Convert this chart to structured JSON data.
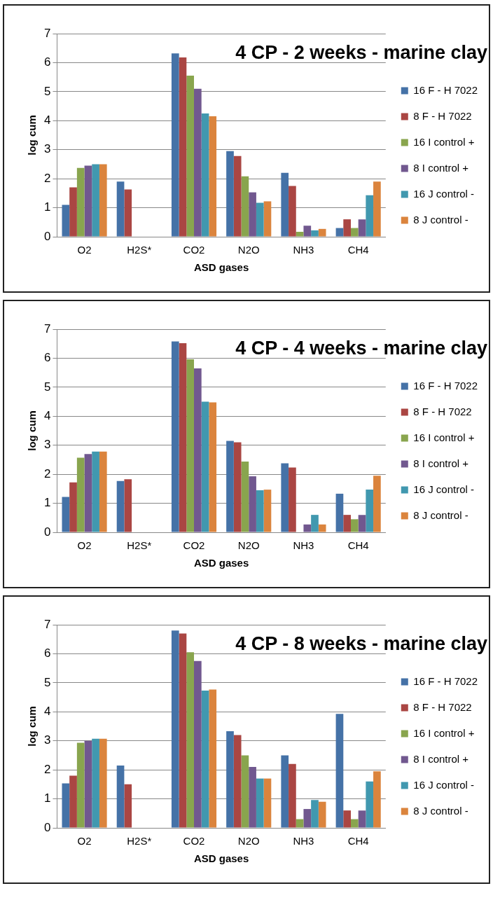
{
  "chart_data": [
    {
      "type": "bar",
      "title": "4 CP - 2 weeks - marine clay",
      "xlabel": "ASD gases",
      "ylabel": "log cum",
      "categories": [
        "O2",
        "H2S*",
        "CO2",
        "N2O",
        "NH3",
        "CH4"
      ],
      "ylim": [
        0,
        7
      ],
      "yticks": [
        0,
        1,
        2,
        3,
        4,
        5,
        6,
        7
      ],
      "grid": "y",
      "legend": "right",
      "series": [
        {
          "name": "16 F - H 7022",
          "color": "#4572a7",
          "values": [
            1.1,
            1.9,
            6.32,
            2.95,
            2.2,
            0.3
          ]
        },
        {
          "name": "8 F - H 7022",
          "color": "#aa4643",
          "values": [
            1.7,
            1.63,
            6.18,
            2.78,
            1.75,
            0.6
          ]
        },
        {
          "name": "16 I control +",
          "color": "#89a54e",
          "values": [
            2.37,
            null,
            5.55,
            2.08,
            0.17,
            0.3
          ]
        },
        {
          "name": "8 I control +",
          "color": "#71588f",
          "values": [
            2.45,
            null,
            5.1,
            1.53,
            0.38,
            0.6
          ]
        },
        {
          "name": "16 J control -",
          "color": "#4198af",
          "values": [
            2.5,
            null,
            4.25,
            1.17,
            0.22,
            1.43
          ]
        },
        {
          "name": "8 J control -",
          "color": "#db843d",
          "values": [
            2.5,
            null,
            4.15,
            1.22,
            0.27,
            1.9
          ]
        }
      ]
    },
    {
      "type": "bar",
      "title": "4 CP - 4 weeks - marine clay",
      "xlabel": "ASD gases",
      "ylabel": "log cum",
      "categories": [
        "O2",
        "H2S*",
        "CO2",
        "N2O",
        "NH3",
        "CH4"
      ],
      "ylim": [
        0,
        7
      ],
      "yticks": [
        0,
        1,
        2,
        3,
        4,
        5,
        6,
        7
      ],
      "grid": "y",
      "legend": "right",
      "series": [
        {
          "name": "16 F - H 7022",
          "color": "#4572a7",
          "values": [
            1.22,
            1.77,
            6.58,
            3.15,
            2.38,
            1.33
          ]
        },
        {
          "name": "8 F - H 7022",
          "color": "#aa4643",
          "values": [
            1.72,
            1.83,
            6.52,
            3.1,
            2.23,
            0.6
          ]
        },
        {
          "name": "16 I control +",
          "color": "#89a54e",
          "values": [
            2.57,
            null,
            5.96,
            2.44,
            null,
            0.45
          ]
        },
        {
          "name": "8 I control +",
          "color": "#71588f",
          "values": [
            2.7,
            null,
            5.65,
            1.93,
            0.27,
            0.6
          ]
        },
        {
          "name": "16 J control -",
          "color": "#4198af",
          "values": [
            2.78,
            null,
            4.5,
            1.45,
            0.6,
            1.47
          ]
        },
        {
          "name": "8 J control -",
          "color": "#db843d",
          "values": [
            2.78,
            null,
            4.48,
            1.47,
            0.27,
            1.95
          ]
        }
      ]
    },
    {
      "type": "bar",
      "title": "4 CP - 8 weeks - marine clay",
      "xlabel": "ASD gases",
      "ylabel": "log cum",
      "categories": [
        "O2",
        "H2S*",
        "CO2",
        "N2O",
        "NH3",
        "CH4"
      ],
      "ylim": [
        0,
        7
      ],
      "yticks": [
        0,
        1,
        2,
        3,
        4,
        5,
        6,
        7
      ],
      "grid": "y",
      "legend": "right",
      "series": [
        {
          "name": "16 F - H 7022",
          "color": "#4572a7",
          "values": [
            1.53,
            2.15,
            6.8,
            3.33,
            2.5,
            3.93
          ]
        },
        {
          "name": "8 F - H 7022",
          "color": "#aa4643",
          "values": [
            1.8,
            1.5,
            6.7,
            3.2,
            2.2,
            0.6
          ]
        },
        {
          "name": "16 I control +",
          "color": "#89a54e",
          "values": [
            2.93,
            null,
            6.05,
            2.5,
            0.3,
            0.3
          ]
        },
        {
          "name": "8 I control +",
          "color": "#71588f",
          "values": [
            3.0,
            null,
            5.75,
            2.1,
            0.65,
            0.6
          ]
        },
        {
          "name": "16 J control -",
          "color": "#4198af",
          "values": [
            3.07,
            null,
            4.73,
            1.7,
            0.96,
            1.6
          ]
        },
        {
          "name": "8 J control -",
          "color": "#db843d",
          "values": [
            3.07,
            null,
            4.77,
            1.7,
            0.9,
            1.95
          ]
        }
      ]
    }
  ]
}
